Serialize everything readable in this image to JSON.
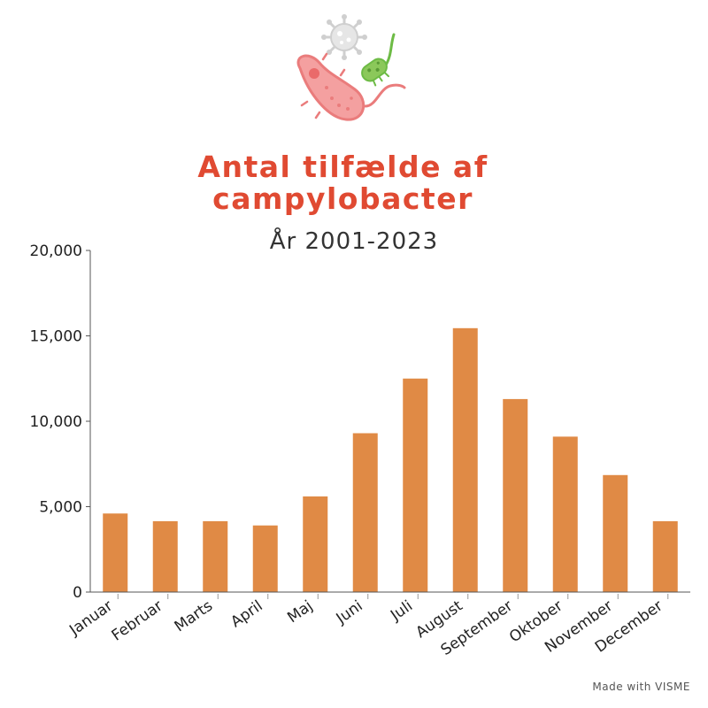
{
  "colors": {
    "title": "#e04a32",
    "bar": "#e08a45",
    "axis": "#555555"
  },
  "illustration": {
    "icons": [
      "virus-icon",
      "bacterium-icon",
      "bacillus-icon"
    ]
  },
  "chart_data": {
    "type": "bar",
    "title": [
      "Antal tilfælde af",
      "campylobacter"
    ],
    "subtitle": "År 2001-2023",
    "xlabel": "",
    "ylabel": "",
    "categories": [
      "Januar",
      "Februar",
      "Marts",
      "April",
      "Maj",
      "Juni",
      "Juli",
      "August",
      "September",
      "Oktober",
      "November",
      "December"
    ],
    "values": [
      4600,
      4150,
      4150,
      3900,
      5600,
      9300,
      12500,
      15450,
      11300,
      9100,
      6850,
      4150
    ],
    "ylim": [
      0,
      20000
    ],
    "yticks": [
      0,
      5000,
      10000,
      15000,
      20000
    ],
    "ytick_labels": [
      "0",
      "5,000",
      "10,000",
      "15,000",
      "20,000"
    ],
    "grid": false,
    "legend": "none"
  },
  "footer": {
    "watermark": "Made with VISME"
  }
}
